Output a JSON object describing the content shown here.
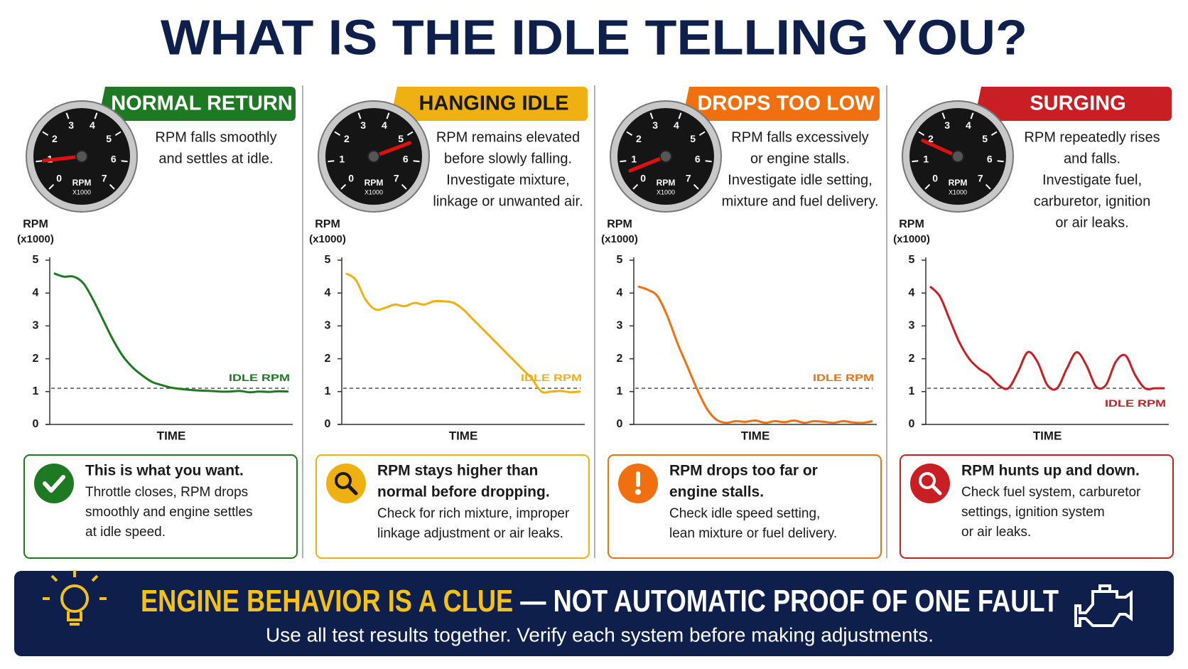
{
  "title": "WHAT IS THE IDLE TELLING YOU?",
  "gauge": {
    "ticks": [
      0,
      1,
      2,
      3,
      4,
      5,
      6,
      7
    ],
    "label": "RPM",
    "unit": "X1000"
  },
  "panels": [
    {
      "header": "NORMAL RETURN",
      "header_text_color": "#ffffff",
      "gauge_value": 1.0,
      "description": [
        "RPM falls smoothly",
        "and settles at idle."
      ],
      "callout": {
        "bold": [
          "This is what you want."
        ],
        "text": [
          "Throttle closes, RPM drops",
          "smoothly and engine settles",
          "at idle speed."
        ]
      }
    },
    {
      "header": "HANGING IDLE",
      "header_text_color": "#1a1a1a",
      "gauge_value": 5.3,
      "description": [
        "RPM remains elevated",
        "before slowly falling.",
        "Investigate mixture,",
        "linkage or unwanted air."
      ],
      "callout": {
        "bold": [
          "RPM stays higher than",
          "normal before dropping."
        ],
        "text": [
          "Check for rich mixture, improper",
          "linkage adjustment or air leaks."
        ]
      }
    },
    {
      "header": "DROPS TOO LOW",
      "header_text_color": "#ffffff",
      "gauge_value": 0.6,
      "description": [
        "RPM falls excessively",
        "or engine stalls.",
        "Investigate idle setting,",
        "mixture and fuel delivery."
      ],
      "callout": {
        "bold": [
          "RPM drops too far or",
          "engine stalls."
        ],
        "text": [
          "Check idle speed setting,",
          "lean mixture or fuel delivery."
        ]
      }
    },
    {
      "header": "SURGING",
      "header_text_color": "#ffffff",
      "gauge_value": 1.8,
      "description": [
        "RPM repeatedly rises",
        "and falls.",
        "Investigate fuel,",
        "carburetor, ignition",
        "or air leaks."
      ],
      "callout": {
        "bold": [
          "RPM hunts up and down."
        ],
        "text": [
          "Check fuel system, carburetor",
          "settings, ignition system",
          "or air leaks."
        ]
      }
    }
  ],
  "chart_data": [
    {
      "type": "line",
      "y_label": "RPM",
      "y_unit": "(x1000)",
      "x_label": "TIME",
      "color": "#1e7a22",
      "ylim": [
        0,
        5
      ],
      "yticks": [
        0,
        1,
        2,
        3,
        4,
        5
      ],
      "reference": {
        "value": 1.1,
        "label": "IDLE RPM",
        "label_position": "above"
      },
      "values": [
        4.6,
        4.5,
        4.5,
        4.3,
        3.8,
        3.2,
        2.6,
        2.1,
        1.75,
        1.5,
        1.3,
        1.2,
        1.12,
        1.08,
        1.05,
        1.03,
        1.02,
        1.0,
        1.0,
        1.02,
        0.98,
        1.0,
        0.99,
        1.01,
        1.0
      ]
    },
    {
      "type": "line",
      "y_label": "RPM",
      "y_unit": "(x1000)",
      "x_label": "TIME",
      "color": "#eeb111",
      "ylim": [
        0,
        5
      ],
      "yticks": [
        0,
        1,
        2,
        3,
        4,
        5
      ],
      "reference": {
        "value": 1.1,
        "label": "IDLE RPM",
        "label_position": "above"
      },
      "values": [
        4.6,
        4.4,
        3.8,
        3.5,
        3.55,
        3.65,
        3.6,
        3.7,
        3.65,
        3.75,
        3.75,
        3.7,
        3.5,
        3.2,
        2.9,
        2.6,
        2.3,
        2.0,
        1.7,
        1.4,
        1.0,
        1.0,
        1.02,
        0.98,
        1.0
      ]
    },
    {
      "type": "line",
      "y_label": "RPM",
      "y_unit": "(x1000)",
      "x_label": "TIME",
      "color": "#f07010",
      "ylim": [
        0,
        5
      ],
      "yticks": [
        0,
        1,
        2,
        3,
        4,
        5
      ],
      "reference": {
        "value": 1.1,
        "label": "IDLE RPM",
        "label_position": "above"
      },
      "values": [
        4.2,
        4.1,
        3.9,
        3.3,
        2.5,
        1.8,
        1.1,
        0.5,
        0.15,
        0.05,
        0.1,
        0.08,
        0.12,
        0.05,
        0.1,
        0.07,
        0.12,
        0.05,
        0.1,
        0.08,
        0.05,
        0.1,
        0.06,
        0.05,
        0.1
      ]
    },
    {
      "type": "line",
      "y_label": "RPM",
      "y_unit": "(x1000)",
      "x_label": "TIME",
      "color": "#c81e24",
      "ylim": [
        0,
        5
      ],
      "yticks": [
        0,
        1,
        2,
        3,
        4,
        5
      ],
      "reference": {
        "value": 1.1,
        "label": "IDLE RPM",
        "label_position": "below"
      },
      "values": [
        4.2,
        3.9,
        3.2,
        2.5,
        2.0,
        1.7,
        1.5,
        1.2,
        1.1,
        1.6,
        2.2,
        1.9,
        1.2,
        1.1,
        1.7,
        2.2,
        1.8,
        1.15,
        1.2,
        1.9,
        2.1,
        1.5,
        1.1,
        1.1,
        1.1
      ]
    }
  ],
  "footer": {
    "highlight": "ENGINE BEHAVIOR IS A CLUE",
    "rest": " — NOT AUTOMATIC PROOF OF ONE FAULT",
    "subtitle": "Use all test results together. Verify each system before making adjustments."
  }
}
